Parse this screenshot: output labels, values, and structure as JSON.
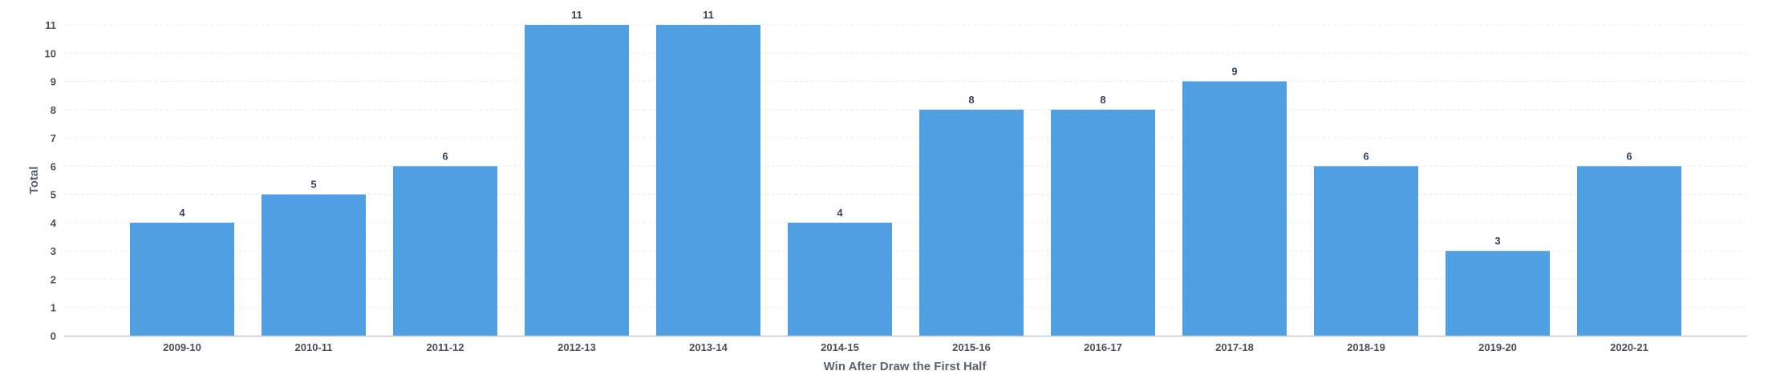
{
  "chart_data": {
    "type": "bar",
    "title": "",
    "xlabel": "Win After Draw the First Half",
    "ylabel": "Total",
    "categories": [
      "2009-10",
      "2010-11",
      "2011-12",
      "2012-13",
      "2013-14",
      "2014-15",
      "2015-16",
      "2016-17",
      "2017-18",
      "2018-19",
      "2019-20",
      "2020-21"
    ],
    "values": [
      4,
      5,
      6,
      11,
      11,
      4,
      8,
      8,
      9,
      6,
      3,
      6
    ],
    "ylim": [
      0,
      11
    ],
    "yticks": [
      0,
      1,
      2,
      3,
      4,
      5,
      6,
      7,
      8,
      9,
      10,
      11
    ],
    "grid": true,
    "bar_color": "#519fe3"
  }
}
